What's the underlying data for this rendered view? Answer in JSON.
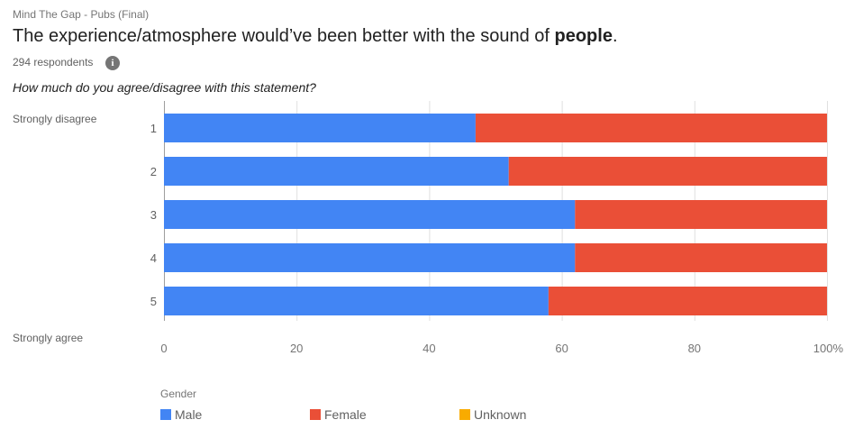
{
  "header": {
    "survey_name": "Mind The Gap - Pubs (Final)",
    "title_prefix": "The experience/atmosphere would’ve been better with the sound of ",
    "title_bold": "people",
    "title_suffix": ".",
    "respondents": "294 respondents",
    "info_icon": "info-icon",
    "question": "How much do you agree/disagree with this statement?"
  },
  "scale": {
    "top_label": "Strongly disagree",
    "bottom_label": "Strongly agree"
  },
  "chart_data": {
    "type": "bar",
    "orientation": "horizontal",
    "stacked": "percent",
    "categories": [
      "1",
      "2",
      "3",
      "4",
      "5"
    ],
    "series": [
      {
        "name": "Male",
        "color": "#4285F4",
        "values": [
          47,
          52,
          62,
          62,
          58
        ]
      },
      {
        "name": "Female",
        "color": "#EA4F37",
        "values": [
          53,
          48,
          38,
          38,
          42
        ]
      },
      {
        "name": "Unknown",
        "color": "#F9AB00",
        "values": [
          0,
          0,
          0,
          0,
          0
        ]
      }
    ],
    "xlim": [
      0,
      100
    ],
    "x_ticks": [
      "0",
      "20",
      "40",
      "60",
      "80",
      "100%"
    ],
    "x_tick_values": [
      0,
      20,
      40,
      60,
      80,
      100
    ],
    "grid": true,
    "legend_title": "Gender",
    "legend_position": "bottom"
  }
}
